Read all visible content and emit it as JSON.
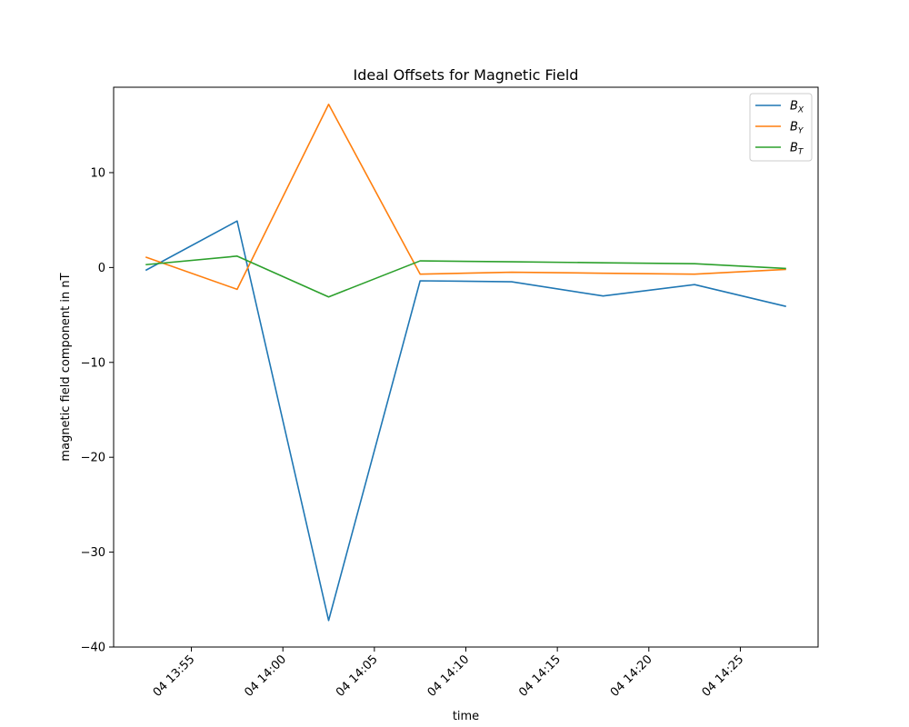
{
  "chart_data": {
    "type": "line",
    "title": "Ideal Offsets for Magnetic Field",
    "xlabel": "time",
    "ylabel": "magnetic field component in nT",
    "x": [
      "13:52:30",
      "13:57:30",
      "14:02:30",
      "14:07:30",
      "14:12:30",
      "14:17:30",
      "14:22:30",
      "14:27:30"
    ],
    "xlim": [
      "13:50:45",
      "14:29:15"
    ],
    "ylim": [
      -40,
      19
    ],
    "x_ticks": [
      {
        "time": "13:55",
        "label": "04 13:55"
      },
      {
        "time": "14:00",
        "label": "04 14:00"
      },
      {
        "time": "14:05",
        "label": "04 14:05"
      },
      {
        "time": "14:10",
        "label": "04 14:10"
      },
      {
        "time": "14:15",
        "label": "04 14:15"
      },
      {
        "time": "14:20",
        "label": "04 14:20"
      },
      {
        "time": "14:25",
        "label": "04 14:25"
      }
    ],
    "y_ticks": [
      {
        "value": 10,
        "label": "10"
      },
      {
        "value": 0,
        "label": "0"
      },
      {
        "value": -10,
        "label": "−10"
      },
      {
        "value": -20,
        "label": "−20"
      },
      {
        "value": -30,
        "label": "−30"
      },
      {
        "value": -40,
        "label": "−40"
      }
    ],
    "grid": false,
    "legend_position": "top-right",
    "series": [
      {
        "name": "B",
        "sub": "X",
        "color": "#1f77b4",
        "values": [
          -0.3,
          4.9,
          -37.2,
          -1.4,
          -1.5,
          -3.0,
          -1.8,
          -4.1
        ]
      },
      {
        "name": "B",
        "sub": "Y",
        "color": "#ff7f0e",
        "values": [
          1.1,
          -2.3,
          17.2,
          -0.7,
          -0.5,
          -0.6,
          -0.7,
          -0.2
        ]
      },
      {
        "name": "B",
        "sub": "T",
        "color": "#2ca02c",
        "values": [
          0.3,
          1.2,
          -3.1,
          0.7,
          0.6,
          0.5,
          0.4,
          -0.1
        ]
      }
    ]
  }
}
